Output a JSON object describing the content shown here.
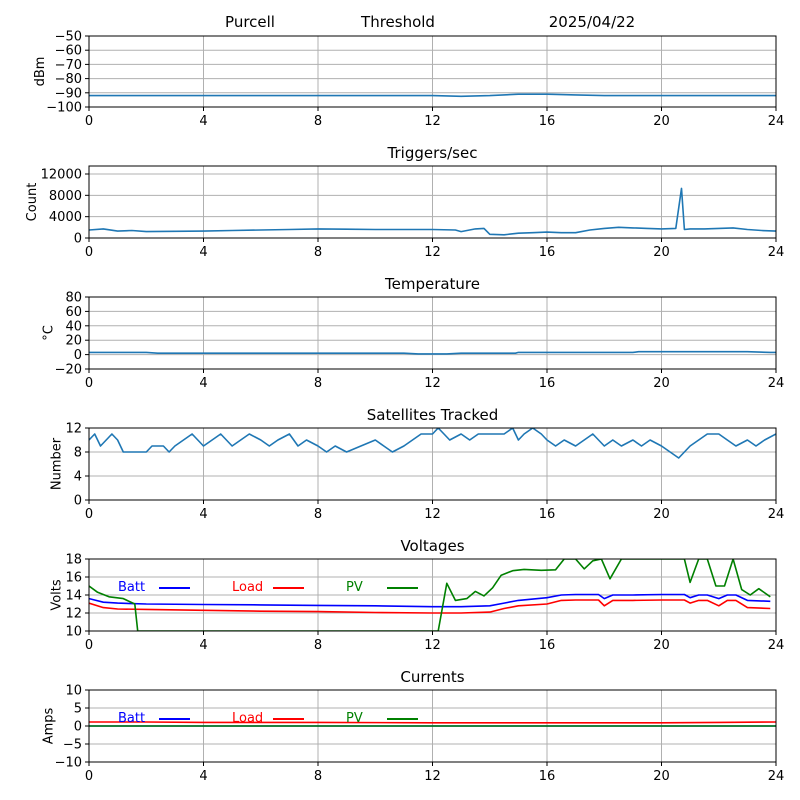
{
  "header": {
    "site": "Purcell",
    "label": "Threshold",
    "date": "2025/04/22"
  },
  "chart_data": [
    {
      "type": "line",
      "title": "",
      "xlabel": "",
      "ylabel": "dBm",
      "xlim": [
        0,
        24
      ],
      "ylim": [
        -100,
        -50
      ],
      "xticks": [
        "0",
        "4",
        "8",
        "12",
        "16",
        "20",
        "24"
      ],
      "yticks": [
        "−50",
        "−60",
        "−70",
        "−80",
        "−90",
        "−100"
      ],
      "ytick_values": [
        -50,
        -60,
        -70,
        -80,
        -90,
        -100
      ],
      "grid": true,
      "series": [
        {
          "color": "#1f77b4",
          "x": [
            0,
            2,
            4,
            6,
            8,
            10,
            12,
            13,
            14,
            15,
            16,
            17,
            18,
            19,
            20,
            21,
            22,
            23,
            24
          ],
          "y": [
            -92,
            -92,
            -92,
            -92,
            -92,
            -92,
            -92,
            -92.5,
            -92,
            -91,
            -91,
            -91.5,
            -92,
            -92,
            -92,
            -92,
            -92,
            -92,
            -92
          ]
        }
      ]
    },
    {
      "type": "line",
      "title": "Triggers/sec",
      "xlabel": "",
      "ylabel": "Count",
      "xlim": [
        0,
        24
      ],
      "ylim": [
        0,
        13500
      ],
      "xticks": [
        "0",
        "4",
        "8",
        "12",
        "16",
        "20",
        "24"
      ],
      "yticks": [
        "0",
        "4000",
        "8000",
        "12000"
      ],
      "ytick_values": [
        0,
        4000,
        8000,
        12000
      ],
      "grid": true,
      "series": [
        {
          "color": "#1f77b4",
          "x": [
            0,
            0.5,
            1,
            1.5,
            2,
            3,
            4,
            5,
            6,
            7,
            8,
            9,
            10,
            11,
            12,
            12.8,
            13,
            13.5,
            13.8,
            14,
            14.5,
            15,
            15.5,
            16,
            16.5,
            17,
            17.5,
            18,
            18.5,
            19,
            19.5,
            20,
            20.5,
            20.7,
            20.8,
            21,
            21.5,
            22,
            22.5,
            23,
            23.5,
            24
          ],
          "y": [
            1500,
            1700,
            1300,
            1400,
            1200,
            1250,
            1300,
            1400,
            1500,
            1600,
            1700,
            1650,
            1600,
            1600,
            1600,
            1500,
            1200,
            1700,
            1800,
            700,
            600,
            900,
            1000,
            1100,
            1000,
            1000,
            1500,
            1800,
            2000,
            1900,
            1800,
            1700,
            1800,
            9300,
            1600,
            1700,
            1700,
            1800,
            1900,
            1600,
            1400,
            1300
          ]
        }
      ]
    },
    {
      "type": "line",
      "title": "Temperature",
      "xlabel": "",
      "ylabel": "°C",
      "xlim": [
        0,
        24
      ],
      "ylim": [
        -20,
        80
      ],
      "xticks": [
        "0",
        "4",
        "8",
        "12",
        "16",
        "20",
        "24"
      ],
      "yticks": [
        "80",
        "60",
        "40",
        "20",
        "0",
        "−20"
      ],
      "ytick_values": [
        80,
        60,
        40,
        20,
        0,
        -20
      ],
      "grid": true,
      "series": [
        {
          "color": "#1f77b4",
          "x": [
            0,
            1,
            2,
            2.4,
            3,
            5,
            7,
            9,
            11,
            11.5,
            12,
            12.5,
            13,
            14,
            14.9,
            15,
            17,
            19,
            19.2,
            21,
            23,
            23.8,
            24
          ],
          "y": [
            3,
            3,
            3,
            2,
            2,
            2,
            2,
            2,
            2,
            1,
            1,
            1,
            2,
            2,
            2,
            3,
            3,
            3,
            4,
            4,
            4,
            3,
            3
          ]
        }
      ]
    },
    {
      "type": "line",
      "title": "Satellites Tracked",
      "xlabel": "",
      "ylabel": "Number",
      "xlim": [
        0,
        24
      ],
      "ylim": [
        0,
        12
      ],
      "xticks": [
        "0",
        "4",
        "8",
        "12",
        "16",
        "20",
        "24"
      ],
      "yticks": [
        "0",
        "4",
        "8",
        "12"
      ],
      "ytick_values": [
        0,
        4,
        8,
        12
      ],
      "grid": true,
      "series": [
        {
          "color": "#1f77b4",
          "x": [
            0,
            0.2,
            0.4,
            0.6,
            0.8,
            1,
            1.2,
            2,
            2.2,
            2.6,
            2.8,
            3,
            3.3,
            3.6,
            4,
            4.3,
            4.6,
            5,
            5.3,
            5.6,
            6,
            6.3,
            6.6,
            7,
            7.3,
            7.6,
            8,
            8.3,
            8.6,
            9,
            9.5,
            10,
            10.3,
            10.6,
            11,
            11.3,
            11.6,
            12,
            12.2,
            12.4,
            12.6,
            13,
            13.3,
            13.6,
            14,
            14.5,
            14.8,
            15,
            15.2,
            15.5,
            15.8,
            16,
            16.3,
            16.6,
            17,
            17.3,
            17.6,
            18,
            18.3,
            18.6,
            19,
            19.3,
            19.6,
            20,
            20.3,
            20.6,
            20.8,
            21,
            21.3,
            21.6,
            22,
            22.3,
            22.6,
            23,
            23.3,
            23.6,
            24
          ],
          "y": [
            10,
            11,
            9,
            10,
            11,
            10,
            8,
            8,
            9,
            9,
            8,
            9,
            10,
            11,
            9,
            10,
            11,
            9,
            10,
            11,
            10,
            9,
            10,
            11,
            9,
            10,
            9,
            8,
            9,
            8,
            9,
            10,
            9,
            8,
            9,
            10,
            11,
            11,
            12,
            11,
            10,
            11,
            10,
            11,
            11,
            11,
            12,
            10,
            11,
            12,
            11,
            10,
            9,
            10,
            9,
            10,
            11,
            9,
            10,
            9,
            10,
            9,
            10,
            9,
            8,
            7,
            8,
            9,
            10,
            11,
            11,
            10,
            9,
            10,
            9,
            10,
            11
          ]
        }
      ]
    },
    {
      "type": "line",
      "title": "Voltages",
      "xlabel": "",
      "ylabel": "Volts",
      "xlim": [
        0,
        24
      ],
      "ylim": [
        10,
        18
      ],
      "xticks": [
        "0",
        "4",
        "8",
        "12",
        "16",
        "20",
        "24"
      ],
      "yticks": [
        "10",
        "12",
        "14",
        "16",
        "18"
      ],
      "ytick_values": [
        10,
        12,
        14,
        16,
        18
      ],
      "grid": true,
      "legend": "top-left",
      "series": [
        {
          "name": "Batt",
          "color": "#0000ff",
          "x": [
            0,
            0.5,
            1,
            2,
            4,
            6,
            8,
            10,
            12,
            13,
            14,
            14.5,
            15,
            16,
            16.5,
            17,
            17.8,
            18,
            18.3,
            19,
            20,
            20.8,
            21,
            21.3,
            21.6,
            22,
            22.3,
            22.6,
            23,
            23.8
          ],
          "y": [
            13.6,
            13.2,
            13.1,
            13.0,
            12.95,
            12.9,
            12.85,
            12.8,
            12.7,
            12.7,
            12.8,
            13.1,
            13.4,
            13.7,
            14.0,
            14.05,
            14.05,
            13.6,
            14.0,
            14.0,
            14.05,
            14.05,
            13.7,
            14.0,
            14.0,
            13.6,
            14.0,
            14.0,
            13.4,
            13.3
          ]
        },
        {
          "name": "Load",
          "color": "#ff0000",
          "x": [
            0,
            0.5,
            1,
            2,
            4,
            6,
            8,
            10,
            12,
            13,
            14,
            14.5,
            15,
            16,
            16.5,
            17,
            17.8,
            18,
            18.3,
            19,
            20,
            20.8,
            21,
            21.3,
            21.6,
            22,
            22.3,
            22.6,
            23,
            23.8
          ],
          "y": [
            13.1,
            12.6,
            12.45,
            12.4,
            12.3,
            12.2,
            12.15,
            12.05,
            12.0,
            12.0,
            12.1,
            12.5,
            12.8,
            13.0,
            13.4,
            13.45,
            13.45,
            12.8,
            13.4,
            13.4,
            13.45,
            13.45,
            13.1,
            13.4,
            13.4,
            12.8,
            13.4,
            13.4,
            12.6,
            12.5
          ]
        },
        {
          "name": "PV",
          "color": "#008000",
          "x": [
            0,
            0.3,
            0.7,
            1.2,
            1.6,
            1.7,
            12.2,
            12.5,
            12.8,
            13.2,
            13.5,
            13.8,
            14.1,
            14.4,
            14.8,
            15.2,
            15.8,
            16.3,
            16.6,
            17.0,
            17.3,
            17.6,
            17.9,
            18.2,
            18.6,
            19.0,
            20.5,
            20.8,
            21.0,
            21.3,
            21.6,
            21.9,
            22.2,
            22.5,
            22.8,
            23.1,
            23.4,
            23.8
          ],
          "y": [
            15.0,
            14.3,
            13.8,
            13.6,
            13.0,
            10.0,
            10.0,
            15.3,
            13.4,
            13.6,
            14.4,
            13.9,
            14.8,
            16.2,
            16.7,
            16.85,
            16.75,
            16.8,
            18.0,
            18.0,
            16.9,
            17.8,
            18.0,
            15.8,
            18.0,
            18.0,
            18.0,
            18.0,
            15.4,
            18.0,
            18.0,
            15.0,
            15.0,
            18.0,
            14.6,
            14.0,
            14.7,
            13.8
          ]
        }
      ]
    },
    {
      "type": "line",
      "title": "Currents",
      "xlabel": "",
      "ylabel": "Amps",
      "xlim": [
        0,
        24
      ],
      "ylim": [
        -10,
        10
      ],
      "xticks": [
        "0",
        "4",
        "8",
        "12",
        "16",
        "20",
        "24"
      ],
      "yticks": [
        "−10",
        "−5",
        "0",
        "5",
        "10"
      ],
      "ytick_values": [
        -10,
        -5,
        0,
        5,
        10
      ],
      "grid": true,
      "legend": "top-left",
      "series": [
        {
          "name": "Batt",
          "color": "#0000ff",
          "x": [
            0,
            24
          ],
          "y": [
            0,
            0
          ]
        },
        {
          "name": "Load",
          "color": "#ff0000",
          "x": [
            0,
            2,
            4,
            8,
            12,
            16,
            20,
            22,
            24
          ],
          "y": [
            1.1,
            1.1,
            1.0,
            1.0,
            0.9,
            0.9,
            0.9,
            1.0,
            1.1
          ]
        },
        {
          "name": "PV",
          "color": "#008000",
          "x": [
            0,
            24
          ],
          "y": [
            0,
            0
          ]
        }
      ]
    }
  ]
}
